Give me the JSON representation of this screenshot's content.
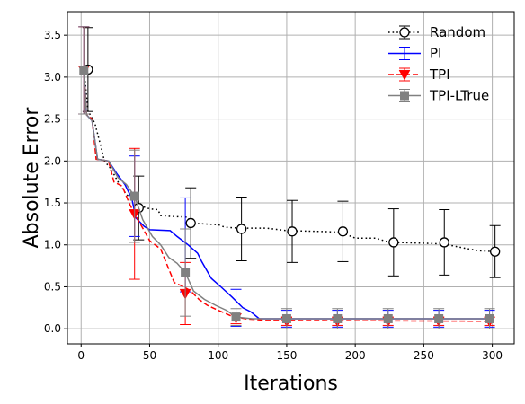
{
  "chart_data": {
    "type": "line",
    "xlabel": "Iterations",
    "ylabel": "Absolute Error",
    "xlim": [
      -10,
      316
    ],
    "ylim": [
      -0.18,
      3.78
    ],
    "xticks": [
      0,
      50,
      100,
      150,
      200,
      250,
      300
    ],
    "yticks": [
      0.0,
      0.5,
      1.0,
      1.5,
      2.0,
      2.5,
      3.0,
      3.5
    ],
    "grid": true,
    "legend_position": "top-right",
    "series": [
      {
        "name": "Random",
        "color": "#000000",
        "style": "dotted",
        "marker": "open-circle",
        "line": [
          [
            2,
            3.1
          ],
          [
            5,
            2.6
          ],
          [
            10,
            2.45
          ],
          [
            14,
            2.2
          ],
          [
            17,
            2.0
          ],
          [
            22,
            1.9
          ],
          [
            27,
            1.75
          ],
          [
            33,
            1.6
          ],
          [
            40,
            1.52
          ],
          [
            46,
            1.45
          ],
          [
            50,
            1.43
          ],
          [
            56,
            1.42
          ],
          [
            58,
            1.35
          ],
          [
            65,
            1.34
          ],
          [
            78,
            1.33
          ],
          [
            80,
            1.26
          ],
          [
            100,
            1.24
          ],
          [
            105,
            1.21
          ],
          [
            115,
            1.2
          ],
          [
            135,
            1.2
          ],
          [
            150,
            1.17
          ],
          [
            175,
            1.16
          ],
          [
            190,
            1.15
          ],
          [
            200,
            1.08
          ],
          [
            215,
            1.08
          ],
          [
            225,
            1.03
          ],
          [
            250,
            1.02
          ],
          [
            265,
            1.01
          ],
          [
            280,
            0.96
          ],
          [
            290,
            0.93
          ],
          [
            300,
            0.92
          ]
        ],
        "points": [
          {
            "x": 5,
            "y": 3.09,
            "err": 0.5
          },
          {
            "x": 42,
            "y": 1.44,
            "err": 0.38
          },
          {
            "x": 80,
            "y": 1.26,
            "err": 0.42
          },
          {
            "x": 117,
            "y": 1.19,
            "err": 0.38
          },
          {
            "x": 154,
            "y": 1.16,
            "err": 0.37
          },
          {
            "x": 191,
            "y": 1.16,
            "err": 0.36
          },
          {
            "x": 228,
            "y": 1.03,
            "err": 0.4
          },
          {
            "x": 265,
            "y": 1.03,
            "err": 0.39
          },
          {
            "x": 302,
            "y": 0.92,
            "err": 0.31
          }
        ]
      },
      {
        "name": "PI",
        "color": "#0000ff",
        "style": "solid",
        "marker": "none",
        "line": [
          [
            2,
            3.08
          ],
          [
            4,
            2.55
          ],
          [
            8,
            2.48
          ],
          [
            12,
            2.02
          ],
          [
            20,
            2.0
          ],
          [
            26,
            1.85
          ],
          [
            32,
            1.72
          ],
          [
            37,
            1.55
          ],
          [
            40,
            1.32
          ],
          [
            46,
            1.22
          ],
          [
            50,
            1.18
          ],
          [
            65,
            1.17
          ],
          [
            70,
            1.1
          ],
          [
            78,
            1.0
          ],
          [
            85,
            0.9
          ],
          [
            88,
            0.8
          ],
          [
            95,
            0.6
          ],
          [
            102,
            0.5
          ],
          [
            110,
            0.38
          ],
          [
            118,
            0.25
          ],
          [
            124,
            0.2
          ],
          [
            130,
            0.12
          ],
          [
            300,
            0.12
          ]
        ],
        "points": [
          {
            "x": 2,
            "y": 3.08,
            "err": 0.52
          },
          {
            "x": 39,
            "y": 1.58,
            "err": 0.48
          },
          {
            "x": 76,
            "y": 1.0,
            "err": 0.56
          },
          {
            "x": 113,
            "y": 0.25,
            "err": 0.22
          },
          {
            "x": 150,
            "y": 0.12,
            "err": 0.1
          },
          {
            "x": 187,
            "y": 0.12,
            "err": 0.1
          },
          {
            "x": 224,
            "y": 0.12,
            "err": 0.1
          },
          {
            "x": 261,
            "y": 0.12,
            "err": 0.1
          },
          {
            "x": 298,
            "y": 0.12,
            "err": 0.1
          }
        ]
      },
      {
        "name": "TPI",
        "color": "#ff0000",
        "style": "dashed",
        "marker": "triangle-down",
        "line": [
          [
            2,
            3.08
          ],
          [
            4,
            2.55
          ],
          [
            8,
            2.5
          ],
          [
            11,
            2.02
          ],
          [
            20,
            2.0
          ],
          [
            24,
            1.75
          ],
          [
            30,
            1.7
          ],
          [
            35,
            1.5
          ],
          [
            39,
            1.37
          ],
          [
            45,
            1.2
          ],
          [
            50,
            1.05
          ],
          [
            58,
            0.95
          ],
          [
            63,
            0.75
          ],
          [
            68,
            0.55
          ],
          [
            75,
            0.5
          ],
          [
            80,
            0.45
          ],
          [
            86,
            0.35
          ],
          [
            92,
            0.28
          ],
          [
            100,
            0.22
          ],
          [
            110,
            0.15
          ],
          [
            120,
            0.12
          ],
          [
            135,
            0.1
          ],
          [
            300,
            0.09
          ]
        ],
        "points": [
          {
            "x": 2,
            "y": 3.08,
            "err": 0.52
          },
          {
            "x": 39,
            "y": 1.37,
            "err": 0.78
          },
          {
            "x": 76,
            "y": 0.42,
            "err": 0.37
          },
          {
            "x": 113,
            "y": 0.13,
            "err": 0.07
          },
          {
            "x": 150,
            "y": 0.09,
            "err": 0.05
          },
          {
            "x": 187,
            "y": 0.09,
            "err": 0.05
          },
          {
            "x": 224,
            "y": 0.09,
            "err": 0.05
          },
          {
            "x": 261,
            "y": 0.09,
            "err": 0.05
          },
          {
            "x": 298,
            "y": 0.09,
            "err": 0.05
          }
        ]
      },
      {
        "name": "TPI-LTrue",
        "color": "#808080",
        "style": "solid",
        "marker": "square",
        "line": [
          [
            2,
            3.08
          ],
          [
            4,
            2.55
          ],
          [
            8,
            2.48
          ],
          [
            12,
            2.02
          ],
          [
            20,
            2.0
          ],
          [
            27,
            1.8
          ],
          [
            33,
            1.72
          ],
          [
            39,
            1.58
          ],
          [
            45,
            1.3
          ],
          [
            52,
            1.1
          ],
          [
            58,
            1.0
          ],
          [
            64,
            0.85
          ],
          [
            70,
            0.78
          ],
          [
            76,
            0.67
          ],
          [
            82,
            0.45
          ],
          [
            90,
            0.35
          ],
          [
            98,
            0.28
          ],
          [
            106,
            0.22
          ],
          [
            113,
            0.14
          ],
          [
            125,
            0.12
          ],
          [
            300,
            0.12
          ]
        ],
        "points": [
          {
            "x": 2,
            "y": 3.08,
            "err": 0.52
          },
          {
            "x": 39,
            "y": 1.58,
            "err": 0.55
          },
          {
            "x": 76,
            "y": 0.67,
            "err": 0.52
          },
          {
            "x": 113,
            "y": 0.14,
            "err": 0.1
          },
          {
            "x": 150,
            "y": 0.12,
            "err": 0.12
          },
          {
            "x": 187,
            "y": 0.12,
            "err": 0.12
          },
          {
            "x": 224,
            "y": 0.12,
            "err": 0.12
          },
          {
            "x": 261,
            "y": 0.12,
            "err": 0.12
          },
          {
            "x": 298,
            "y": 0.12,
            "err": 0.12
          }
        ]
      }
    ]
  }
}
